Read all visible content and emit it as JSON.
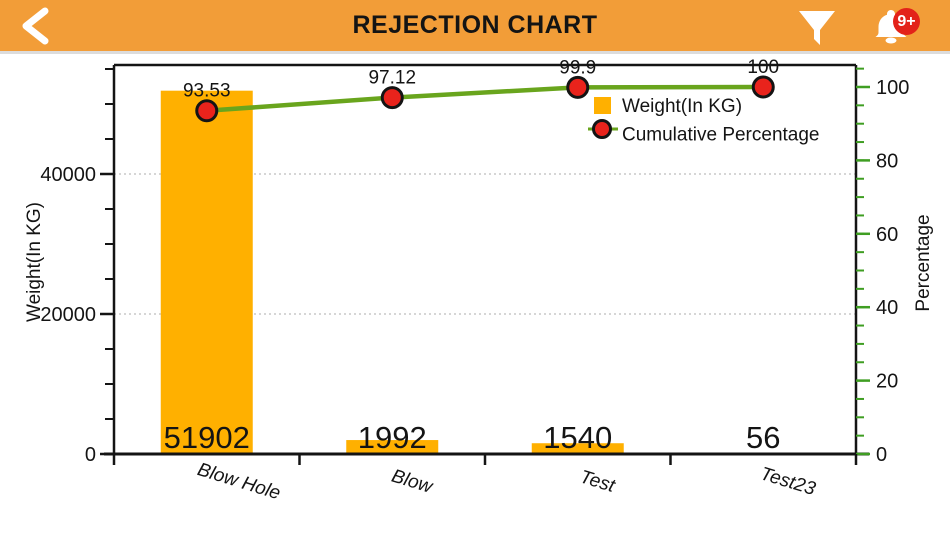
{
  "header": {
    "title": "REJECTION CHART",
    "notification_badge": "9+",
    "colors": {
      "background": "#F29D38",
      "badge": "#E32219",
      "icon": "#FFFFFF",
      "title_text": "#141414"
    }
  },
  "chart_data": {
    "type": "bar",
    "subtype": "pareto-combo",
    "categories": [
      "Blow Hole",
      "Blow",
      "Test",
      "Test23"
    ],
    "series": [
      {
        "name": "Weight(In KG)",
        "render": "bar",
        "axis": "left",
        "color": "#FFB000",
        "values": [
          51902,
          1992,
          1540,
          56
        ]
      },
      {
        "name": "Cumulative Percentage",
        "render": "line",
        "axis": "right",
        "color": "#69A51D",
        "marker_fill": "#E9231C",
        "marker_stroke": "#141414",
        "values": [
          93.53,
          97.12,
          99.9,
          100
        ]
      }
    ],
    "ylabel_left": "Weight(In KG)",
    "ylabel_right": "Percentage",
    "yticks_left": [
      0,
      20000,
      40000
    ],
    "yticks_left_minor_step": 5000,
    "yticks_right": [
      0,
      20,
      40,
      60,
      80,
      100
    ],
    "yticks_right_minor_step": 5,
    "ylim_left": [
      0,
      55000
    ],
    "ylim_right": [
      0,
      106
    ],
    "grid": "dotted horizontal lines at left-axis major ticks",
    "legend_position": "inside top-right",
    "colors": {
      "axis": "#141414",
      "right_axis_ticks": "#3F9E22",
      "gridline": "#C9C9C9",
      "label_text": "#141414"
    }
  }
}
